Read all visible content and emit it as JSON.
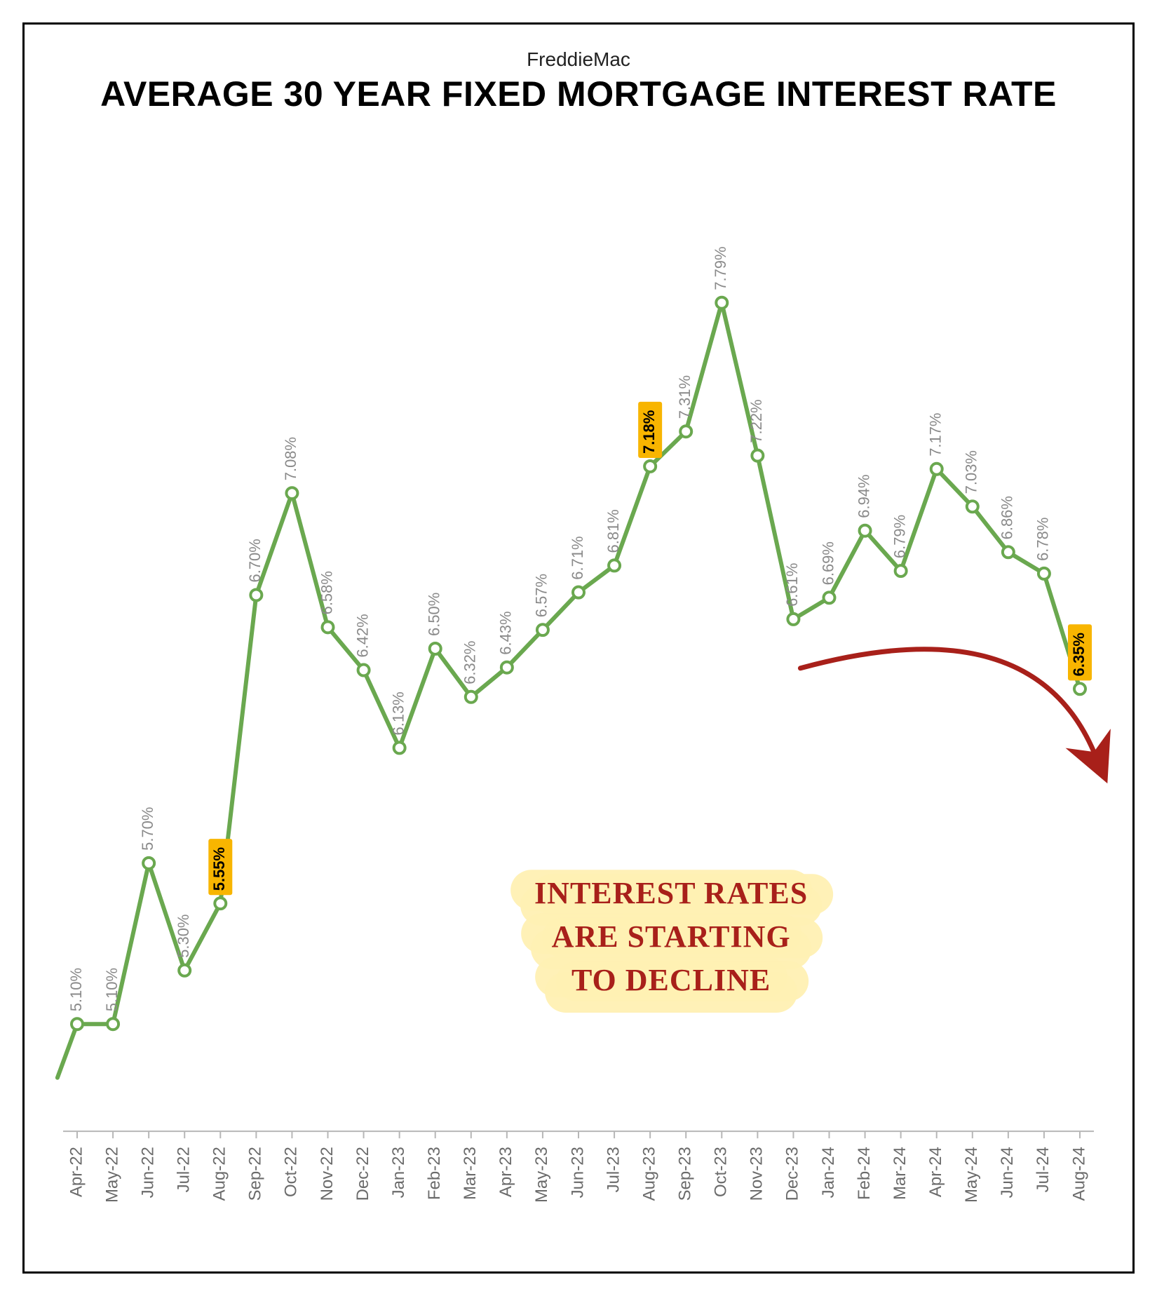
{
  "card": {
    "border_color": "#000000",
    "border_width": 3,
    "background": "#ffffff"
  },
  "header": {
    "subtitle": "FreddieMac",
    "subtitle_fontsize": 28,
    "subtitle_color": "#222222",
    "title": "AVERAGE 30 YEAR FIXED MORTGAGE INTEREST RATE",
    "title_fontsize": 50,
    "title_color": "#000000",
    "title_weight": 800
  },
  "chart": {
    "type": "line",
    "line_color": "#6aa84f",
    "line_width": 6,
    "marker_fill": "#ffffff",
    "marker_stroke": "#6aa84f",
    "marker_stroke_width": 4,
    "marker_radius": 8,
    "ylim": [
      4.7,
      8.2
    ],
    "axis_color": "#b7b7b7",
    "tick_color": "#b7b7b7",
    "value_label_color": "#8a8a8a",
    "value_label_fontsize": 22,
    "xcat_color": "#6b6b6b",
    "xcat_fontsize": 24,
    "highlight_bg": "#f8b500",
    "highlight_text_color": "#000000",
    "highlighted_points": [
      "Aug-22",
      "Aug-23",
      "Aug-24"
    ],
    "categories": [
      "Apr-22",
      "May-22",
      "Jun-22",
      "Jul-22",
      "Aug-22",
      "Sep-22",
      "Oct-22",
      "Nov-22",
      "Dec-22",
      "Jan-23",
      "Feb-23",
      "Mar-23",
      "Apr-23",
      "May-23",
      "Jun-23",
      "Jul-23",
      "Aug-23",
      "Sep-23",
      "Oct-23",
      "Nov-23",
      "Dec-23",
      "Jan-24",
      "Feb-24",
      "Mar-24",
      "Apr-24",
      "May-24",
      "Jun-24",
      "Jul-24",
      "Aug-24"
    ],
    "values": [
      5.1,
      5.1,
      5.7,
      5.3,
      5.55,
      6.7,
      7.08,
      6.58,
      6.42,
      6.13,
      6.5,
      6.32,
      6.43,
      6.57,
      6.71,
      6.81,
      7.18,
      7.31,
      7.79,
      7.22,
      6.61,
      6.69,
      6.94,
      6.79,
      7.17,
      7.03,
      6.86,
      6.78,
      6.35
    ],
    "value_labels": [
      "5.10%",
      "5.10%",
      "5.70%",
      "5.30%",
      "5.55%",
      "6.70%",
      "7.08%",
      "6.58%",
      "6.42%",
      "6.13%",
      "6.50%",
      "6.32%",
      "6.43%",
      "6.57%",
      "6.71%",
      "6.81%",
      "7.18%",
      "7.31%",
      "7.79%",
      "7.22%",
      "6.61%",
      "6.69%",
      "6.94%",
      "6.79%",
      "7.17%",
      "7.03%",
      "6.86%",
      "6.78%",
      "6.35%"
    ],
    "lead_in": {
      "value": 4.9
    }
  },
  "annotation": {
    "lines": [
      "INTEREST RATES",
      "ARE STARTING",
      "TO DECLINE"
    ],
    "bg_color": "#fff0b3",
    "text_color": "#a8201a",
    "fontsize": 44,
    "arrow_color": "#a8201a",
    "arrow_width": 7
  }
}
